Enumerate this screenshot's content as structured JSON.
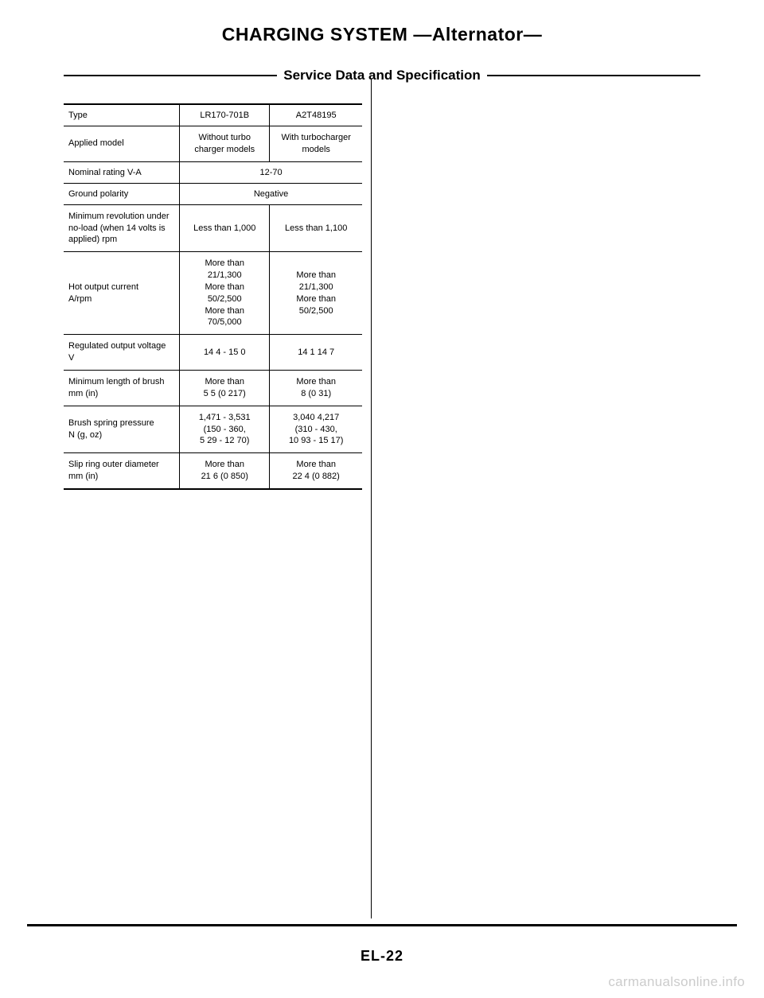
{
  "title": "CHARGING SYSTEM —Alternator—",
  "subtitle": "Service Data and Specification",
  "page_number": "EL-22",
  "watermark": "carmanualsonline.info",
  "table": {
    "rows": [
      {
        "label": "Type",
        "col2": "LR170-701B",
        "col3": "A2T48195"
      },
      {
        "label": "Applied model",
        "col2": "Without turbo charger models",
        "col3": "With turbocharger models"
      },
      {
        "label": "Nominal rating   V-A",
        "merged": "12-70"
      },
      {
        "label": "Ground polarity",
        "merged": "Negative"
      },
      {
        "label": "Minimum revolution under no-load (when 14 volts is applied)            rpm",
        "col2": "Less than 1,000",
        "col3": "Less than 1,100"
      },
      {
        "label": "Hot output current\n                         A/rpm",
        "col2": "More than\n21/1,300\nMore than\n50/2,500\nMore than\n70/5,000",
        "col3": "More than\n21/1,300\nMore than\n50/2,500"
      },
      {
        "label": "Regulated output voltage\n                              V",
        "col2": "14 4 - 15 0",
        "col3": "14 1   14 7"
      },
      {
        "label": "Minimum length of brush\n                      mm (in)",
        "col2": "More than\n5 5 (0 217)",
        "col3": "More than\n8 (0 31)"
      },
      {
        "label": "Brush spring pressure\n                      N (g, oz)",
        "col2": "1,471 - 3,531\n(150 - 360,\n5 29 - 12 70)",
        "col3": "3,040   4,217\n(310 - 430,\n10 93 - 15 17)"
      },
      {
        "label": "Slip ring outer diameter\n                      mm (in)",
        "col2": "More than\n21 6 (0 850)",
        "col3": "More than\n22 4 (0 882)"
      }
    ]
  }
}
